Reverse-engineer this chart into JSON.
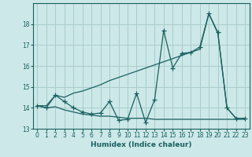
{
  "xlabel": "Humidex (Indice chaleur)",
  "background_color": "#cce8e8",
  "grid_color": "#aacccc",
  "line_color": "#1a6060",
  "x": [
    0,
    1,
    2,
    3,
    4,
    5,
    6,
    7,
    8,
    9,
    10,
    11,
    12,
    13,
    14,
    15,
    16,
    17,
    18,
    19,
    20,
    21,
    22,
    23
  ],
  "y_zigzag": [
    14.1,
    14.0,
    14.6,
    14.3,
    14.0,
    13.8,
    13.7,
    13.75,
    14.3,
    13.4,
    13.45,
    14.7,
    13.3,
    14.4,
    17.7,
    15.9,
    16.6,
    16.65,
    16.9,
    18.5,
    17.6,
    14.0,
    13.5,
    13.5
  ],
  "y_upper": [
    14.1,
    14.1,
    14.6,
    14.5,
    14.7,
    14.8,
    14.95,
    15.1,
    15.3,
    15.45,
    15.6,
    15.75,
    15.9,
    16.05,
    16.2,
    16.35,
    16.5,
    16.65,
    16.8,
    18.5,
    17.55,
    14.0,
    13.5,
    13.5
  ],
  "y_lower": [
    14.1,
    14.0,
    14.05,
    13.9,
    13.8,
    13.7,
    13.65,
    13.6,
    13.6,
    13.55,
    13.5,
    13.5,
    13.5,
    13.45,
    13.45,
    13.45,
    13.45,
    13.45,
    13.45,
    13.45,
    13.45,
    13.45,
    13.45,
    13.45
  ],
  "ylim": [
    13.0,
    19.0
  ],
  "xlim": [
    -0.5,
    23.5
  ],
  "yticks": [
    13,
    14,
    15,
    16,
    17,
    18
  ],
  "xticks": [
    0,
    1,
    2,
    3,
    4,
    5,
    6,
    7,
    8,
    9,
    10,
    11,
    12,
    13,
    14,
    15,
    16,
    17,
    18,
    19,
    20,
    21,
    22,
    23
  ],
  "marker": "+",
  "markersize": 4,
  "linewidth": 0.9
}
